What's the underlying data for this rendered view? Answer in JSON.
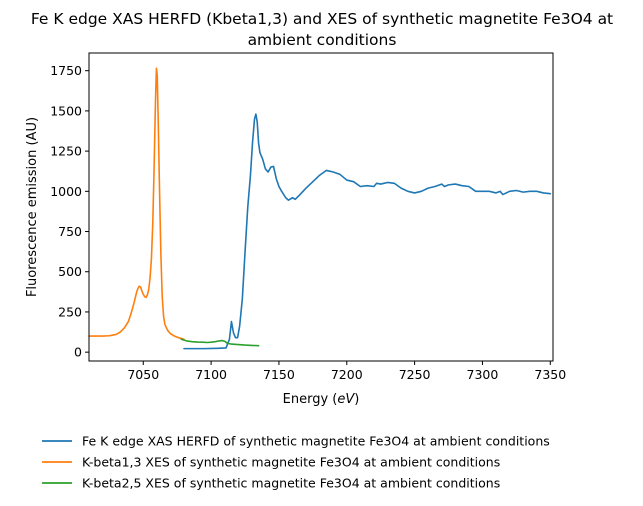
{
  "chart_data": {
    "type": "line",
    "title": [
      "Fe K edge XAS HERFD (Kbeta1,3) and XES of synthetic magnetite Fe3O4 at",
      "ambient conditions"
    ],
    "xlabel_prefix": "Energy (",
    "xlabel_unit": "eV",
    "xlabel_suffix": ")",
    "ylabel": "Fluorescence emission (AU)",
    "xlim": [
      7010,
      7352
    ],
    "ylim": [
      -55,
      1860
    ],
    "xticks": [
      7050,
      7100,
      7150,
      7200,
      7250,
      7300,
      7350
    ],
    "yticks": [
      0,
      250,
      500,
      750,
      1000,
      1250,
      1500,
      1750
    ],
    "grid": false,
    "legend_position": "below-plot",
    "series": [
      {
        "name": "Fe K edge XAS HERFD of synthetic magnetite Fe3O4 at ambient conditions",
        "color": "#1f77b4",
        "points": [
          [
            7080,
            22
          ],
          [
            7095,
            22
          ],
          [
            7105,
            24
          ],
          [
            7111,
            26
          ],
          [
            7113.5,
            80
          ],
          [
            7115,
            190
          ],
          [
            7116.5,
            120
          ],
          [
            7118,
            90
          ],
          [
            7119.5,
            90
          ],
          [
            7121,
            160
          ],
          [
            7123,
            330
          ],
          [
            7125,
            620
          ],
          [
            7127,
            900
          ],
          [
            7129,
            1100
          ],
          [
            7130.5,
            1300
          ],
          [
            7132,
            1450
          ],
          [
            7133,
            1480
          ],
          [
            7134,
            1430
          ],
          [
            7135,
            1300
          ],
          [
            7136,
            1240
          ],
          [
            7138,
            1200
          ],
          [
            7140,
            1140
          ],
          [
            7142,
            1120
          ],
          [
            7144,
            1150
          ],
          [
            7146,
            1155
          ],
          [
            7148,
            1080
          ],
          [
            7150,
            1030
          ],
          [
            7152,
            1000
          ],
          [
            7155,
            960
          ],
          [
            7157,
            945
          ],
          [
            7160,
            960
          ],
          [
            7162,
            950
          ],
          [
            7165,
            975
          ],
          [
            7170,
            1020
          ],
          [
            7175,
            1060
          ],
          [
            7180,
            1100
          ],
          [
            7185,
            1130
          ],
          [
            7190,
            1120
          ],
          [
            7195,
            1105
          ],
          [
            7200,
            1070
          ],
          [
            7205,
            1060
          ],
          [
            7210,
            1030
          ],
          [
            7215,
            1035
          ],
          [
            7220,
            1030
          ],
          [
            7222,
            1050
          ],
          [
            7225,
            1045
          ],
          [
            7230,
            1055
          ],
          [
            7235,
            1050
          ],
          [
            7240,
            1020
          ],
          [
            7245,
            1000
          ],
          [
            7250,
            990
          ],
          [
            7255,
            1000
          ],
          [
            7260,
            1020
          ],
          [
            7265,
            1030
          ],
          [
            7270,
            1045
          ],
          [
            7272,
            1030
          ],
          [
            7275,
            1040
          ],
          [
            7280,
            1045
          ],
          [
            7285,
            1035
          ],
          [
            7290,
            1030
          ],
          [
            7295,
            1000
          ],
          [
            7300,
            1000
          ],
          [
            7305,
            1000
          ],
          [
            7310,
            990
          ],
          [
            7313,
            1000
          ],
          [
            7315,
            980
          ],
          [
            7320,
            1000
          ],
          [
            7325,
            1005
          ],
          [
            7330,
            995
          ],
          [
            7335,
            1000
          ],
          [
            7340,
            1000
          ],
          [
            7345,
            990
          ],
          [
            7350,
            985
          ]
        ]
      },
      {
        "name": "K-beta1,3 XES of synthetic magnetite Fe3O4 at ambient conditions",
        "color": "#ff7f0e",
        "points": [
          [
            7010,
            100
          ],
          [
            7015,
            100
          ],
          [
            7020,
            100
          ],
          [
            7025,
            102
          ],
          [
            7030,
            110
          ],
          [
            7033,
            125
          ],
          [
            7036,
            150
          ],
          [
            7039,
            190
          ],
          [
            7041,
            240
          ],
          [
            7043,
            300
          ],
          [
            7045,
            370
          ],
          [
            7046,
            395
          ],
          [
            7047,
            410
          ],
          [
            7048,
            405
          ],
          [
            7049,
            380
          ],
          [
            7050,
            360
          ],
          [
            7051,
            345
          ],
          [
            7052,
            340
          ],
          [
            7053,
            355
          ],
          [
            7054,
            390
          ],
          [
            7055,
            460
          ],
          [
            7056,
            580
          ],
          [
            7057,
            800
          ],
          [
            7058,
            1150
          ],
          [
            7059,
            1560
          ],
          [
            7059.7,
            1765
          ],
          [
            7060.3,
            1720
          ],
          [
            7061,
            1450
          ],
          [
            7062,
            1000
          ],
          [
            7063,
            600
          ],
          [
            7064,
            340
          ],
          [
            7065,
            220
          ],
          [
            7066,
            170
          ],
          [
            7068,
            135
          ],
          [
            7070,
            115
          ],
          [
            7073,
            100
          ],
          [
            7076,
            90
          ],
          [
            7080,
            80
          ]
        ]
      },
      {
        "name": "K-beta2,5 XES of synthetic magnetite Fe3O4 at ambient conditions",
        "color": "#2ca02c",
        "points": [
          [
            7078,
            80
          ],
          [
            7082,
            70
          ],
          [
            7086,
            65
          ],
          [
            7090,
            63
          ],
          [
            7094,
            62
          ],
          [
            7097,
            60
          ],
          [
            7100,
            62
          ],
          [
            7103,
            65
          ],
          [
            7106,
            70
          ],
          [
            7108,
            72
          ],
          [
            7110,
            68
          ],
          [
            7112,
            55
          ],
          [
            7115,
            50
          ],
          [
            7120,
            47
          ],
          [
            7125,
            44
          ],
          [
            7130,
            42
          ],
          [
            7135,
            40
          ]
        ]
      }
    ]
  }
}
